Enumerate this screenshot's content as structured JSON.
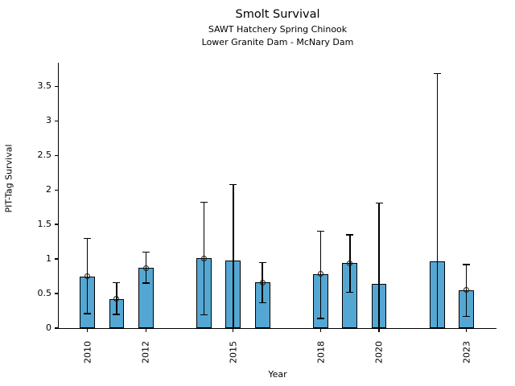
{
  "chart_data": {
    "type": "bar",
    "title": "Smolt Survival",
    "subtitle1": "SAWT Hatchery Spring Chinook",
    "subtitle2": "Lower Granite Dam - McNary Dam",
    "xlabel": "Year",
    "ylabel": "PIT-Tag Survival",
    "xlim": [
      2009,
      2024
    ],
    "ylim": [
      0,
      3.84
    ],
    "yticks": [
      0,
      0.5,
      1,
      1.5,
      2,
      2.5,
      3,
      3.5
    ],
    "ytick_labels": [
      "0",
      "0.5",
      "1",
      "1.5",
      "2",
      "2.5",
      "3",
      "3.5"
    ],
    "xticks": [
      2010,
      2012,
      2015,
      2018,
      2020,
      2023
    ],
    "xtick_labels": [
      "2010",
      "2012",
      "2015",
      "2018",
      "2020",
      "2023"
    ],
    "grid": false,
    "legend": "none",
    "bar_color": "#55a7d3",
    "bar_edge_color": "#000000",
    "bar_width_years": 0.52,
    "series": [
      {
        "year": 2010,
        "value": 0.75,
        "ci_low": 0.21,
        "ci_high": 1.3,
        "marker": true,
        "lower_cap": true
      },
      {
        "year": 2011,
        "value": 0.42,
        "ci_low": 0.2,
        "ci_high": 0.66,
        "marker": true,
        "lower_cap": true
      },
      {
        "year": 2012,
        "value": 0.87,
        "ci_low": 0.65,
        "ci_high": 1.1,
        "marker": true,
        "lower_cap": true
      },
      {
        "year": 2014,
        "value": 1.01,
        "ci_low": 0.19,
        "ci_high": 1.82,
        "marker": true,
        "lower_cap": true
      },
      {
        "year": 2015,
        "value": 0.98,
        "ci_low": 0.0,
        "ci_high": 2.08,
        "marker": false,
        "lower_cap": false
      },
      {
        "year": 2016,
        "value": 0.66,
        "ci_low": 0.37,
        "ci_high": 0.95,
        "marker": true,
        "lower_cap": true
      },
      {
        "year": 2018,
        "value": 0.78,
        "ci_low": 0.14,
        "ci_high": 1.4,
        "marker": true,
        "lower_cap": true
      },
      {
        "year": 2019,
        "value": 0.94,
        "ci_low": 0.52,
        "ci_high": 1.35,
        "marker": true,
        "lower_cap": true
      },
      {
        "year": 2020,
        "value": 0.64,
        "ci_low": 0.0,
        "ci_high": 1.81,
        "marker": false,
        "lower_cap": false
      },
      {
        "year": 2022,
        "value": 0.97,
        "ci_low": 0.0,
        "ci_high": 3.68,
        "marker": false,
        "lower_cap": false
      },
      {
        "year": 2023,
        "value": 0.55,
        "ci_low": 0.17,
        "ci_high": 0.92,
        "marker": true,
        "lower_cap": true
      }
    ]
  }
}
